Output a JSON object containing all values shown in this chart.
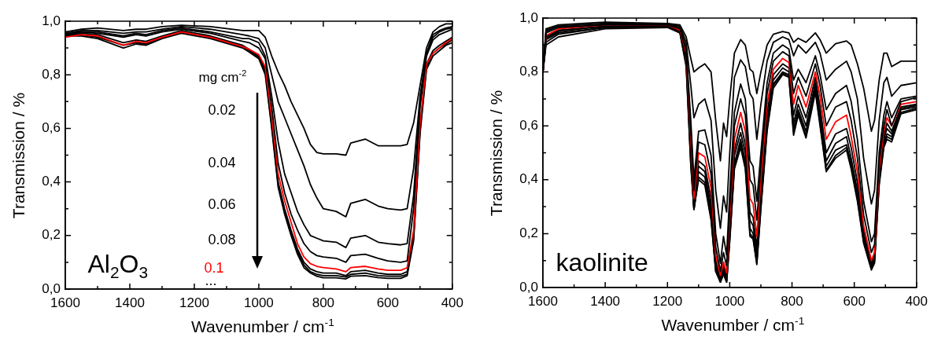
{
  "chart_data": [
    {
      "type": "line",
      "xlabel": "Wavenumber / cm$^{-1}$",
      "ylabel": "Transmission / %",
      "xlim": [
        1600,
        400
      ],
      "ylim": [
        0,
        1
      ],
      "xticks": [
        1600,
        {
          "value": 1500,
          "label": null
        },
        1400,
        {
          "value": 1300,
          "label": null
        },
        1200,
        {
          "value": 1100,
          "label": null
        },
        1000,
        {
          "value": 900,
          "label": null
        },
        800,
        {
          "value": 700,
          "label": null
        },
        600,
        {
          "value": 500,
          "label": null
        },
        400
      ],
      "yticks": [
        {
          "value": 0,
          "label": "0,0"
        },
        {
          "value": 0.1,
          "label": null
        },
        {
          "value": 0.2,
          "label": "0,2"
        },
        {
          "value": 0.3,
          "label": null
        },
        {
          "value": 0.4,
          "label": "0,4"
        },
        {
          "value": 0.5,
          "label": null
        },
        {
          "value": 0.6,
          "label": "0,6"
        },
        {
          "value": 0.7,
          "label": null
        },
        {
          "value": 0.8,
          "label": "0,8"
        },
        {
          "value": 0.9,
          "label": null
        },
        {
          "value": 1,
          "label": "1,0"
        }
      ],
      "annotations": [
        "mg cm$^{-2}$",
        "0.02",
        "0.04",
        "0.06",
        "0.08",
        "0.1",
        "...",
        "Al$_{2}$O$_{3}$"
      ],
      "x": [
        1600,
        1550,
        1500,
        1420,
        1380,
        1350,
        1300,
        1240,
        1150,
        1050,
        1030,
        1000,
        980,
        960,
        940,
        920,
        900,
        880,
        860,
        840,
        820,
        800,
        760,
        730,
        715,
        670,
        630,
        600,
        560,
        540,
        520,
        500,
        480,
        460,
        440,
        420,
        400
      ],
      "series": [
        {
          "color": "#000000",
          "values": [
            0.96,
            0.97,
            0.975,
            0.965,
            0.97,
            0.97,
            0.98,
            0.985,
            0.98,
            0.965,
            0.965,
            0.965,
            0.94,
            0.87,
            0.81,
            0.76,
            0.7,
            0.65,
            0.6,
            0.54,
            0.51,
            0.505,
            0.505,
            0.5,
            0.545,
            0.56,
            0.535,
            0.535,
            0.535,
            0.54,
            0.62,
            0.76,
            0.9,
            0.96,
            0.98,
            0.99,
            0.99
          ]
        },
        {
          "color": "#000000",
          "values": [
            0.955,
            0.965,
            0.965,
            0.955,
            0.96,
            0.96,
            0.97,
            0.98,
            0.97,
            0.95,
            0.945,
            0.935,
            0.9,
            0.8,
            0.7,
            0.64,
            0.58,
            0.52,
            0.46,
            0.39,
            0.34,
            0.3,
            0.29,
            0.27,
            0.32,
            0.335,
            0.31,
            0.3,
            0.295,
            0.3,
            0.45,
            0.72,
            0.88,
            0.95,
            0.965,
            0.975,
            0.98
          ]
        },
        {
          "color": "#000000",
          "values": [
            0.955,
            0.96,
            0.96,
            0.945,
            0.955,
            0.95,
            0.965,
            0.975,
            0.96,
            0.935,
            0.935,
            0.92,
            0.87,
            0.72,
            0.55,
            0.43,
            0.36,
            0.29,
            0.24,
            0.2,
            0.19,
            0.18,
            0.175,
            0.155,
            0.19,
            0.2,
            0.175,
            0.17,
            0.165,
            0.17,
            0.35,
            0.7,
            0.88,
            0.94,
            0.96,
            0.97,
            0.975
          ]
        },
        {
          "color": "#000000",
          "values": [
            0.95,
            0.96,
            0.955,
            0.94,
            0.95,
            0.945,
            0.96,
            0.97,
            0.955,
            0.925,
            0.92,
            0.9,
            0.86,
            0.68,
            0.47,
            0.36,
            0.28,
            0.22,
            0.17,
            0.14,
            0.125,
            0.12,
            0.115,
            0.1,
            0.125,
            0.13,
            0.115,
            0.105,
            0.1,
            0.105,
            0.3,
            0.68,
            0.87,
            0.93,
            0.95,
            0.96,
            0.97
          ]
        },
        {
          "color": "#ff0000",
          "values": [
            0.94,
            0.95,
            0.945,
            0.91,
            0.925,
            0.92,
            0.94,
            0.96,
            0.94,
            0.905,
            0.895,
            0.875,
            0.83,
            0.64,
            0.43,
            0.33,
            0.25,
            0.17,
            0.12,
            0.095,
            0.085,
            0.08,
            0.075,
            0.065,
            0.08,
            0.085,
            0.075,
            0.07,
            0.07,
            0.08,
            0.22,
            0.62,
            0.84,
            0.88,
            0.9,
            0.92,
            0.935
          ]
        },
        {
          "color": "#000000",
          "values": [
            0.95,
            0.955,
            0.95,
            0.92,
            0.93,
            0.925,
            0.945,
            0.965,
            0.945,
            0.91,
            0.895,
            0.87,
            0.82,
            0.62,
            0.4,
            0.3,
            0.22,
            0.15,
            0.1,
            0.075,
            0.065,
            0.06,
            0.06,
            0.05,
            0.065,
            0.07,
            0.06,
            0.055,
            0.055,
            0.065,
            0.2,
            0.6,
            0.84,
            0.89,
            0.91,
            0.925,
            0.94
          ]
        },
        {
          "color": "#000000",
          "values": [
            0.95,
            0.95,
            0.94,
            0.91,
            0.92,
            0.915,
            0.94,
            0.96,
            0.94,
            0.905,
            0.89,
            0.865,
            0.81,
            0.61,
            0.39,
            0.29,
            0.21,
            0.14,
            0.09,
            0.065,
            0.055,
            0.05,
            0.05,
            0.045,
            0.055,
            0.06,
            0.05,
            0.048,
            0.048,
            0.055,
            0.19,
            0.59,
            0.83,
            0.88,
            0.9,
            0.915,
            0.93
          ]
        },
        {
          "color": "#000000",
          "values": [
            0.945,
            0.945,
            0.935,
            0.9,
            0.915,
            0.91,
            0.935,
            0.955,
            0.935,
            0.9,
            0.885,
            0.86,
            0.8,
            0.6,
            0.38,
            0.28,
            0.2,
            0.13,
            0.08,
            0.06,
            0.048,
            0.042,
            0.042,
            0.038,
            0.048,
            0.05,
            0.043,
            0.04,
            0.04,
            0.05,
            0.18,
            0.58,
            0.82,
            0.87,
            0.89,
            0.91,
            0.92
          ]
        }
      ]
    },
    {
      "type": "line",
      "xlabel": "Wavenumber / cm$^{-1}$",
      "ylabel": "Transmission / %",
      "xlim": [
        1600,
        400
      ],
      "ylim": [
        0,
        1
      ],
      "xticks": [
        1600,
        {
          "value": 1500,
          "label": null
        },
        1400,
        {
          "value": 1300,
          "label": null
        },
        1200,
        {
          "value": 1100,
          "label": null
        },
        1000,
        {
          "value": 900,
          "label": null
        },
        800,
        {
          "value": 700,
          "label": null
        },
        600,
        {
          "value": 500,
          "label": null
        },
        400
      ],
      "yticks": [
        {
          "value": 0,
          "label": "0,0"
        },
        {
          "value": 0.1,
          "label": null
        },
        {
          "value": 0.2,
          "label": "0,2"
        },
        {
          "value": 0.3,
          "label": null
        },
        {
          "value": 0.4,
          "label": "0,4"
        },
        {
          "value": 0.5,
          "label": null
        },
        {
          "value": 0.6,
          "label": "0,6"
        },
        {
          "value": 0.7,
          "label": null
        },
        {
          "value": 0.8,
          "label": "0,8"
        },
        {
          "value": 0.9,
          "label": null
        },
        {
          "value": 1,
          "label": "1,0"
        }
      ],
      "annotations": [
        "kaolinite"
      ],
      "x": [
        1600,
        1590,
        1550,
        1400,
        1200,
        1160,
        1140,
        1125,
        1115,
        1100,
        1080,
        1060,
        1045,
        1030,
        1020,
        1010,
        1000,
        985,
        965,
        950,
        935,
        925,
        913,
        900,
        880,
        860,
        830,
        810,
        795,
        780,
        755,
        725,
        710,
        690,
        660,
        625,
        610,
        590,
        570,
        545,
        535,
        520,
        505,
        495,
        480,
        450,
        400
      ],
      "series": [
        {
          "color": "#000000",
          "values": [
            0.81,
            0.96,
            0.975,
            0.985,
            0.98,
            0.975,
            0.93,
            0.85,
            0.8,
            0.815,
            0.83,
            0.8,
            0.62,
            0.47,
            0.61,
            0.56,
            0.7,
            0.87,
            0.92,
            0.9,
            0.81,
            0.8,
            0.72,
            0.8,
            0.9,
            0.94,
            0.95,
            0.945,
            0.91,
            0.925,
            0.91,
            0.945,
            0.92,
            0.87,
            0.905,
            0.915,
            0.9,
            0.83,
            0.74,
            0.58,
            0.62,
            0.77,
            0.87,
            0.87,
            0.82,
            0.84,
            0.84
          ]
        },
        {
          "color": "#000000",
          "values": [
            0.8,
            0.955,
            0.97,
            0.98,
            0.98,
            0.97,
            0.91,
            0.75,
            0.63,
            0.68,
            0.7,
            0.62,
            0.36,
            0.22,
            0.34,
            0.28,
            0.5,
            0.78,
            0.845,
            0.82,
            0.72,
            0.7,
            0.55,
            0.68,
            0.84,
            0.91,
            0.93,
            0.92,
            0.86,
            0.9,
            0.87,
            0.91,
            0.87,
            0.77,
            0.81,
            0.84,
            0.8,
            0.7,
            0.48,
            0.31,
            0.36,
            0.62,
            0.76,
            0.78,
            0.71,
            0.75,
            0.76
          ]
        },
        {
          "color": "#000000",
          "values": [
            0.8,
            0.95,
            0.97,
            0.98,
            0.978,
            0.965,
            0.89,
            0.62,
            0.4,
            0.58,
            0.585,
            0.49,
            0.2,
            0.09,
            0.19,
            0.12,
            0.35,
            0.65,
            0.755,
            0.7,
            0.47,
            0.45,
            0.32,
            0.5,
            0.76,
            0.87,
            0.9,
            0.885,
            0.77,
            0.81,
            0.76,
            0.86,
            0.79,
            0.66,
            0.72,
            0.75,
            0.69,
            0.55,
            0.32,
            0.17,
            0.2,
            0.5,
            0.64,
            0.69,
            0.63,
            0.7,
            0.71
          ]
        },
        {
          "color": "#000000",
          "values": [
            0.8,
            0.945,
            0.965,
            0.975,
            0.975,
            0.96,
            0.88,
            0.58,
            0.36,
            0.54,
            0.53,
            0.42,
            0.15,
            0.06,
            0.13,
            0.08,
            0.3,
            0.6,
            0.7,
            0.64,
            0.4,
            0.38,
            0.25,
            0.45,
            0.72,
            0.84,
            0.875,
            0.86,
            0.72,
            0.78,
            0.71,
            0.83,
            0.75,
            0.6,
            0.67,
            0.69,
            0.62,
            0.48,
            0.27,
            0.13,
            0.16,
            0.47,
            0.6,
            0.66,
            0.6,
            0.69,
            0.705
          ]
        },
        {
          "color": "#ff0000",
          "values": [
            0.8,
            0.935,
            0.96,
            0.975,
            0.975,
            0.955,
            0.87,
            0.55,
            0.33,
            0.5,
            0.485,
            0.37,
            0.12,
            0.045,
            0.095,
            0.055,
            0.26,
            0.55,
            0.65,
            0.58,
            0.33,
            0.31,
            0.19,
            0.4,
            0.68,
            0.81,
            0.85,
            0.835,
            0.68,
            0.75,
            0.67,
            0.8,
            0.71,
            0.55,
            0.615,
            0.64,
            0.56,
            0.43,
            0.23,
            0.1,
            0.13,
            0.44,
            0.58,
            0.63,
            0.6,
            0.68,
            0.69
          ]
        },
        {
          "color": "#000000",
          "values": [
            0.8,
            0.93,
            0.955,
            0.97,
            0.972,
            0.955,
            0.86,
            0.52,
            0.31,
            0.47,
            0.45,
            0.33,
            0.1,
            0.03,
            0.08,
            0.04,
            0.23,
            0.51,
            0.61,
            0.53,
            0.28,
            0.26,
            0.15,
            0.36,
            0.65,
            0.79,
            0.83,
            0.815,
            0.64,
            0.71,
            0.63,
            0.78,
            0.67,
            0.5,
            0.57,
            0.59,
            0.52,
            0.39,
            0.21,
            0.09,
            0.12,
            0.42,
            0.56,
            0.61,
            0.58,
            0.67,
            0.68
          ]
        },
        {
          "color": "#000000",
          "values": [
            0.8,
            0.925,
            0.95,
            0.97,
            0.97,
            0.95,
            0.85,
            0.5,
            0.3,
            0.45,
            0.43,
            0.3,
            0.08,
            0.025,
            0.07,
            0.03,
            0.21,
            0.49,
            0.575,
            0.5,
            0.25,
            0.23,
            0.12,
            0.33,
            0.62,
            0.77,
            0.815,
            0.8,
            0.61,
            0.68,
            0.6,
            0.76,
            0.64,
            0.47,
            0.535,
            0.56,
            0.48,
            0.36,
            0.19,
            0.08,
            0.11,
            0.41,
            0.55,
            0.59,
            0.57,
            0.665,
            0.675
          ]
        },
        {
          "color": "#000000",
          "values": [
            0.8,
            0.92,
            0.945,
            0.965,
            0.97,
            0.95,
            0.84,
            0.48,
            0.29,
            0.43,
            0.41,
            0.28,
            0.07,
            0.02,
            0.06,
            0.025,
            0.19,
            0.46,
            0.55,
            0.47,
            0.22,
            0.2,
            0.1,
            0.31,
            0.6,
            0.755,
            0.8,
            0.79,
            0.59,
            0.66,
            0.58,
            0.745,
            0.62,
            0.45,
            0.51,
            0.53,
            0.46,
            0.34,
            0.18,
            0.075,
            0.1,
            0.4,
            0.54,
            0.57,
            0.56,
            0.66,
            0.67
          ]
        },
        {
          "color": "#000000",
          "values": [
            0.8,
            0.91,
            0.94,
            0.965,
            0.968,
            0.945,
            0.83,
            0.46,
            0.29,
            0.41,
            0.39,
            0.26,
            0.06,
            0.02,
            0.05,
            0.02,
            0.18,
            0.45,
            0.535,
            0.45,
            0.2,
            0.185,
            0.09,
            0.3,
            0.59,
            0.75,
            0.795,
            0.785,
            0.575,
            0.65,
            0.565,
            0.735,
            0.61,
            0.435,
            0.49,
            0.52,
            0.45,
            0.33,
            0.17,
            0.07,
            0.095,
            0.39,
            0.53,
            0.56,
            0.55,
            0.65,
            0.665
          ]
        },
        {
          "color": "#000000",
          "values": [
            0.8,
            0.9,
            0.93,
            0.96,
            0.965,
            0.945,
            0.82,
            0.45,
            0.29,
            0.4,
            0.38,
            0.25,
            0.06,
            0.02,
            0.05,
            0.02,
            0.17,
            0.44,
            0.52,
            0.44,
            0.19,
            0.18,
            0.085,
            0.29,
            0.58,
            0.74,
            0.79,
            0.78,
            0.565,
            0.64,
            0.555,
            0.725,
            0.6,
            0.43,
            0.48,
            0.51,
            0.44,
            0.32,
            0.165,
            0.065,
            0.09,
            0.38,
            0.52,
            0.55,
            0.54,
            0.645,
            0.66
          ]
        }
      ]
    }
  ]
}
